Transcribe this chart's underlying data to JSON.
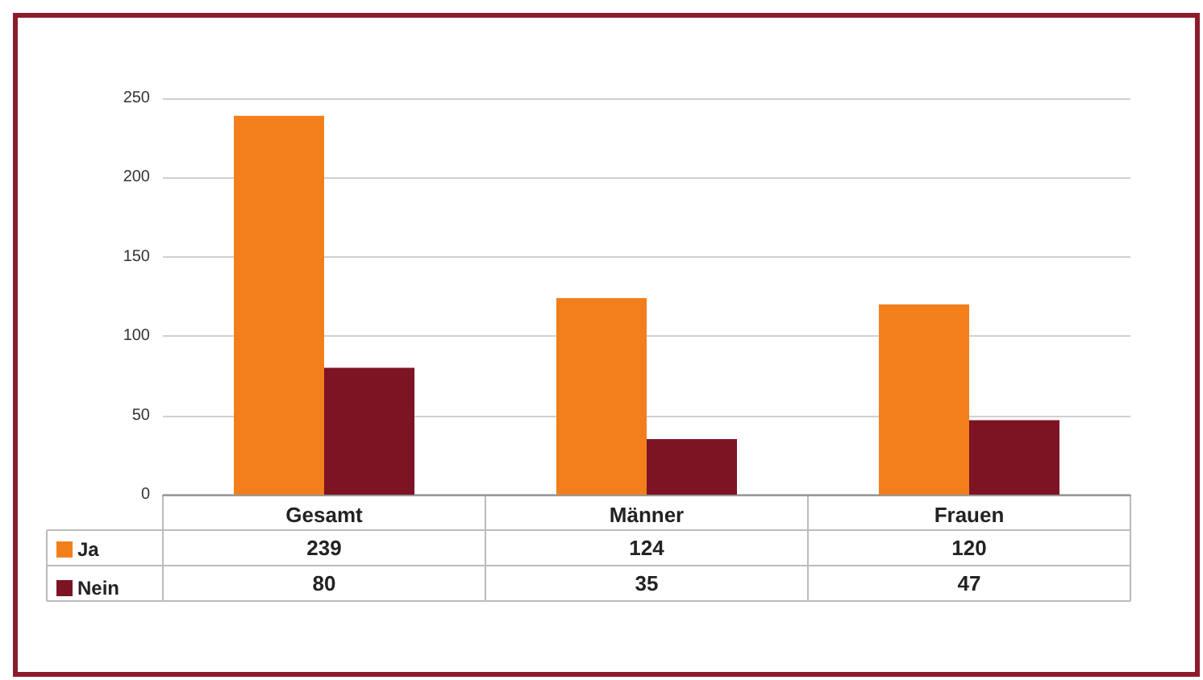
{
  "chart_data": {
    "type": "bar",
    "categories": [
      "Gesamt",
      "Männer",
      "Frauen"
    ],
    "series": [
      {
        "name": "Ja",
        "color": "#f27f1b",
        "values": [
          239,
          124,
          120
        ]
      },
      {
        "name": "Nein",
        "color": "#7d1424",
        "values": [
          80,
          35,
          47
        ]
      }
    ],
    "ylim": [
      0,
      250
    ],
    "yticks": [
      0,
      50,
      100,
      150,
      200,
      250
    ],
    "grid": "y",
    "legend": "bottom left",
    "data_labels": true
  }
}
